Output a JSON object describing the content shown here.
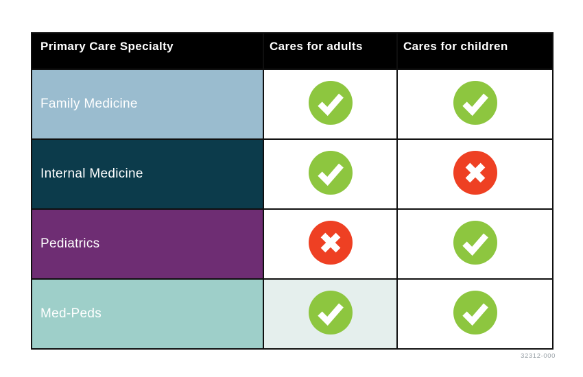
{
  "colors": {
    "header_bg": "#000000",
    "header_text": "#ffffff",
    "border": "#0f0f0f",
    "check_green": "#8dc63f",
    "cross_red": "#ee4023",
    "icon_mark": "#ffffff",
    "row_family_bg": "#9abccf",
    "row_internal_bg": "#0c3b4b",
    "row_pediatrics_bg": "#6e2d73",
    "row_medpeds_bg": "#9ecfc9",
    "medpeds_adult_cell_bg": "#e5efed",
    "footer_text": "#9aa2a8"
  },
  "chart_data": {
    "type": "table",
    "columns": [
      "Primary Care Specialty",
      "Cares for adults",
      "Cares for children"
    ],
    "rows": [
      {
        "specialty": "Family Medicine",
        "cares_for_adults": true,
        "cares_for_children": true
      },
      {
        "specialty": "Internal Medicine",
        "cares_for_adults": true,
        "cares_for_children": false
      },
      {
        "specialty": "Pediatrics",
        "cares_for_adults": false,
        "cares_for_children": true
      },
      {
        "specialty": "Med-Peds",
        "cares_for_adults": true,
        "cares_for_children": true
      }
    ]
  },
  "footer_code": "32312-000"
}
